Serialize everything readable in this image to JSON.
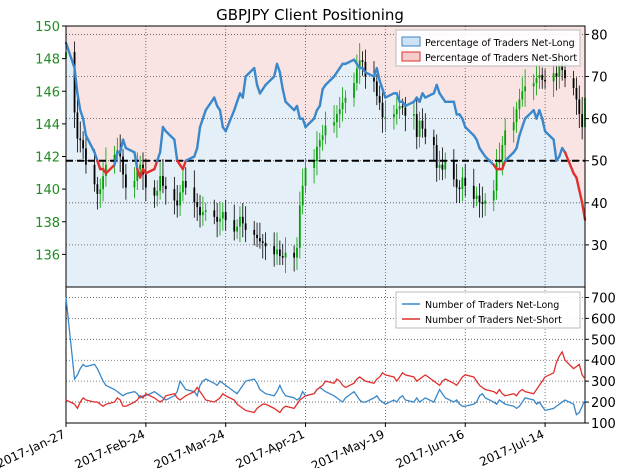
{
  "title": "GBPJPY Client Positioning",
  "colors": {
    "price_up": "#00a000",
    "price_down": "#000000",
    "price_axis": "#228b22",
    "net_long": "#3a87c9",
    "net_short": "#e0302e",
    "long_fill": "#cfe2f3",
    "short_fill": "#f4cccc",
    "ref_line": "#000000",
    "grid": "#555555"
  },
  "x_tick_labels": [
    "2017-Jan-27",
    "2017-Feb-24",
    "2017-Mar-24",
    "2017-Apr-21",
    "2017-May-19",
    "2017-Jun-16",
    "2017-Jul-14"
  ],
  "chart_data": [
    {
      "type": "line",
      "panel": "top",
      "title": "GBPJPY Client Positioning",
      "x_axis": {
        "type": "date",
        "range": [
          "2017-01-27",
          "2017-07-28"
        ],
        "ticks": [
          "2017-01-27",
          "2017-02-24",
          "2017-03-24",
          "2017-04-21",
          "2017-05-19",
          "2017-06-16",
          "2017-07-14"
        ]
      },
      "left_axis": {
        "label": "price",
        "range": [
          134,
          150
        ],
        "ticks": [
          136,
          138,
          140,
          142,
          144,
          146,
          148,
          150
        ]
      },
      "right_axis": {
        "label": "percent",
        "range": [
          20,
          82
        ],
        "ticks": [
          30,
          40,
          50,
          60,
          70,
          80
        ]
      },
      "reference_line": {
        "axis": "right",
        "value": 50,
        "style": "dashed"
      },
      "grid": "dotted",
      "legend": {
        "position": "top-right",
        "entries": [
          "Percentage of Traders Net-Long",
          "Percentage of Traders Net-Short"
        ]
      },
      "price_candles": {
        "dates": [
          "2017-01-27",
          "2017-01-30",
          "2017-01-31",
          "2017-02-01",
          "2017-02-02",
          "2017-02-03",
          "2017-02-06",
          "2017-02-07",
          "2017-02-08",
          "2017-02-09",
          "2017-02-10",
          "2017-02-13",
          "2017-02-14",
          "2017-02-15",
          "2017-02-16",
          "2017-02-17",
          "2017-02-20",
          "2017-02-21",
          "2017-02-22",
          "2017-02-23",
          "2017-02-24",
          "2017-02-27",
          "2017-02-28",
          "2017-03-01",
          "2017-03-02",
          "2017-03-03",
          "2017-03-06",
          "2017-03-07",
          "2017-03-08",
          "2017-03-09",
          "2017-03-10",
          "2017-03-13",
          "2017-03-14",
          "2017-03-15",
          "2017-03-16",
          "2017-03-17",
          "2017-03-20",
          "2017-03-21",
          "2017-03-22",
          "2017-03-23",
          "2017-03-24",
          "2017-03-27",
          "2017-03-28",
          "2017-03-29",
          "2017-03-30",
          "2017-03-31",
          "2017-04-03",
          "2017-04-04",
          "2017-04-05",
          "2017-04-06",
          "2017-04-07",
          "2017-04-10",
          "2017-04-11",
          "2017-04-12",
          "2017-04-13",
          "2017-04-14",
          "2017-04-17",
          "2017-04-18",
          "2017-04-19",
          "2017-04-20",
          "2017-04-21",
          "2017-04-24",
          "2017-04-25",
          "2017-04-26",
          "2017-04-27",
          "2017-04-28",
          "2017-05-01",
          "2017-05-02",
          "2017-05-03",
          "2017-05-04",
          "2017-05-05",
          "2017-05-08",
          "2017-05-09",
          "2017-05-10",
          "2017-05-11",
          "2017-05-12",
          "2017-05-15",
          "2017-05-16",
          "2017-05-17",
          "2017-05-18",
          "2017-05-19",
          "2017-05-22",
          "2017-05-23",
          "2017-05-24",
          "2017-05-25",
          "2017-05-26",
          "2017-05-29",
          "2017-05-30",
          "2017-05-31",
          "2017-06-01",
          "2017-06-02",
          "2017-06-05",
          "2017-06-06",
          "2017-06-07",
          "2017-06-08",
          "2017-06-09",
          "2017-06-12",
          "2017-06-13",
          "2017-06-14",
          "2017-06-15",
          "2017-06-16",
          "2017-06-19",
          "2017-06-20",
          "2017-06-21",
          "2017-06-22",
          "2017-06-23",
          "2017-06-26",
          "2017-06-27",
          "2017-06-28",
          "2017-06-29",
          "2017-06-30",
          "2017-07-03",
          "2017-07-04",
          "2017-07-05",
          "2017-07-06",
          "2017-07-07",
          "2017-07-10",
          "2017-07-11",
          "2017-07-12",
          "2017-07-13",
          "2017-07-14",
          "2017-07-17",
          "2017-07-18",
          "2017-07-19",
          "2017-07-20",
          "2017-07-21",
          "2017-07-24",
          "2017-07-25",
          "2017-07-26",
          "2017-07-27",
          "2017-07-28"
        ],
        "close": [
          148.4,
          144.7,
          143.1,
          143.0,
          142.5,
          141.5,
          140.3,
          139.7,
          140.0,
          140.8,
          141.5,
          142.1,
          142.4,
          142.0,
          140.9,
          140.1,
          140.5,
          141.2,
          141.5,
          140.9,
          140.1,
          139.6,
          139.9,
          140.8,
          140.2,
          140.0,
          139.3,
          139.0,
          139.8,
          140.5,
          140.1,
          139.2,
          138.9,
          138.4,
          138.6,
          138.7,
          138.3,
          138.0,
          138.2,
          138.6,
          138.1,
          137.4,
          137.7,
          138.3,
          137.9,
          137.5,
          137.2,
          137.0,
          136.8,
          136.7,
          136.5,
          136.0,
          136.3,
          135.9,
          135.8,
          136.1,
          135.8,
          136.4,
          139.0,
          140.2,
          141.3,
          141.7,
          142.6,
          143.0,
          143.3,
          143.9,
          144.1,
          144.6,
          144.9,
          145.3,
          145.6,
          146.5,
          147.4,
          147.9,
          147.8,
          146.9,
          146.6,
          145.7,
          145.3,
          144.4,
          144.4,
          144.6,
          144.9,
          145.1,
          145.0,
          144.5,
          144.6,
          143.2,
          144.2,
          143.7,
          143.2,
          142.7,
          141.3,
          141.5,
          141.2,
          141.7,
          140.6,
          140.1,
          140.0,
          140.7,
          140.2,
          139.4,
          139.6,
          139.2,
          139.1,
          139.3,
          139.9,
          141.6,
          141.8,
          142.7,
          143.6,
          144.1,
          144.9,
          145.5,
          146.0,
          146.3,
          146.5,
          146.8,
          147.0,
          146.7,
          146.6,
          147.1,
          146.9,
          147.7,
          147.3,
          146.8,
          146.2,
          145.5,
          144.6,
          143.8,
          145.6
        ],
        "ohlc_note": "each candle has open/high/low drawn from close with small range"
      },
      "series": [
        {
          "name": "Percentage of Traders Net-Long",
          "axis": "right",
          "values": [
            78,
            72,
            66,
            62,
            60,
            56,
            52,
            50,
            48,
            48,
            47,
            49,
            52,
            52,
            55,
            53,
            52,
            48,
            46,
            48,
            47,
            48,
            50,
            52,
            58,
            57,
            55,
            50,
            49,
            48,
            50,
            51,
            53,
            58,
            60,
            62,
            65,
            63,
            62,
            58,
            57,
            62,
            64,
            66,
            65,
            70,
            72,
            68,
            66,
            67,
            68,
            70,
            73,
            71,
            67,
            64,
            62,
            63,
            60,
            60,
            58,
            60,
            62,
            63,
            67,
            68,
            70,
            71,
            72,
            73,
            73,
            74,
            73,
            72,
            72,
            71,
            70,
            72,
            69,
            67,
            65,
            66,
            66,
            64,
            64,
            63,
            64,
            65,
            64,
            66,
            65,
            66,
            68,
            66,
            65,
            64,
            64,
            61,
            61,
            60,
            58,
            56,
            55,
            53,
            52,
            51,
            49,
            48,
            48,
            48,
            50,
            52,
            53,
            56,
            58,
            60,
            62,
            60,
            62,
            60,
            57,
            55,
            50,
            51,
            53,
            52,
            47,
            46,
            43,
            40,
            36
          ]
        },
        {
          "name": "Percentage of Traders Net-Short",
          "axis": "right",
          "values": [
            22,
            28,
            34,
            38,
            40,
            44,
            48,
            50,
            52,
            52,
            53,
            51,
            48,
            48,
            45,
            47,
            48,
            52,
            54,
            52,
            53,
            52,
            50,
            48,
            42,
            43,
            45,
            50,
            51,
            52,
            50,
            49,
            47,
            42,
            40,
            38,
            35,
            37,
            38,
            42,
            43,
            38,
            36,
            34,
            35,
            30,
            28,
            32,
            34,
            33,
            32,
            30,
            27,
            29,
            33,
            36,
            38,
            37,
            40,
            40,
            42,
            40,
            38,
            37,
            33,
            32,
            30,
            29,
            28,
            27,
            27,
            26,
            27,
            28,
            28,
            29,
            30,
            28,
            31,
            33,
            35,
            34,
            34,
            36,
            36,
            37,
            36,
            35,
            36,
            34,
            35,
            34,
            32,
            34,
            35,
            36,
            36,
            39,
            39,
            40,
            42,
            44,
            45,
            47,
            48,
            49,
            51,
            52,
            52,
            52,
            50,
            48,
            47,
            44,
            42,
            40,
            38,
            40,
            38,
            40,
            43,
            45,
            50,
            49,
            47,
            48,
            53,
            54,
            57,
            60,
            64
          ]
        }
      ]
    },
    {
      "type": "line",
      "panel": "bottom",
      "x_axis": {
        "type": "date",
        "range": [
          "2017-01-27",
          "2017-07-28"
        ]
      },
      "right_axis": {
        "range": [
          100,
          750
        ],
        "ticks": [
          100,
          200,
          300,
          400,
          500,
          600,
          700
        ]
      },
      "legend": {
        "position": "top-right",
        "entries": [
          "Number of Traders Net-Long",
          "Number of Traders Net-Short"
        ]
      },
      "series": [
        {
          "name": "Number of Traders Net-Long",
          "values": [
            700,
            310,
            330,
            360,
            380,
            370,
            380,
            360,
            330,
            300,
            280,
            260,
            250,
            240,
            230,
            240,
            250,
            240,
            220,
            230,
            230,
            250,
            240,
            230,
            220,
            210,
            230,
            250,
            300,
            280,
            260,
            250,
            230,
            280,
            300,
            310,
            290,
            280,
            300,
            290,
            280,
            250,
            240,
            260,
            280,
            300,
            310,
            290,
            260,
            250,
            240,
            230,
            250,
            280,
            250,
            230,
            220,
            210,
            220,
            250,
            230,
            240,
            260,
            270,
            260,
            250,
            230,
            220,
            210,
            200,
            220,
            250,
            230,
            210,
            200,
            200,
            220,
            230,
            210,
            200,
            190,
            210,
            200,
            220,
            230,
            210,
            200,
            220,
            200,
            210,
            220,
            200,
            230,
            260,
            240,
            220,
            200,
            210,
            190,
            180,
            180,
            190,
            200,
            230,
            240,
            220,
            200,
            190,
            210,
            200,
            190,
            180,
            170,
            180,
            200,
            220,
            210,
            190,
            200,
            180,
            160,
            170,
            180,
            190,
            200,
            210,
            190,
            140,
            150,
            180,
            210
          ]
        },
        {
          "name": "Number of Traders Net-Short",
          "values": [
            210,
            190,
            170,
            200,
            220,
            210,
            200,
            200,
            190,
            180,
            190,
            200,
            220,
            210,
            180,
            180,
            200,
            210,
            230,
            220,
            240,
            220,
            210,
            200,
            210,
            230,
            240,
            220,
            210,
            220,
            230,
            250,
            270,
            250,
            230,
            210,
            200,
            210,
            220,
            240,
            230,
            210,
            190,
            180,
            170,
            160,
            150,
            170,
            180,
            190,
            190,
            170,
            160,
            150,
            170,
            180,
            170,
            190,
            210,
            220,
            230,
            240,
            260,
            270,
            280,
            300,
            290,
            310,
            300,
            280,
            270,
            290,
            310,
            320,
            310,
            300,
            290,
            310,
            320,
            340,
            330,
            320,
            300,
            320,
            340,
            330,
            320,
            300,
            310,
            320,
            330,
            300,
            290,
            280,
            300,
            310,
            290,
            280,
            300,
            320,
            330,
            320,
            300,
            280,
            270,
            260,
            250,
            240,
            260,
            240,
            230,
            240,
            230,
            250,
            260,
            250,
            240,
            260,
            280,
            300,
            320,
            340,
            390,
            420,
            440,
            400,
            360,
            370,
            380,
            330,
            310
          ]
        }
      ]
    }
  ]
}
